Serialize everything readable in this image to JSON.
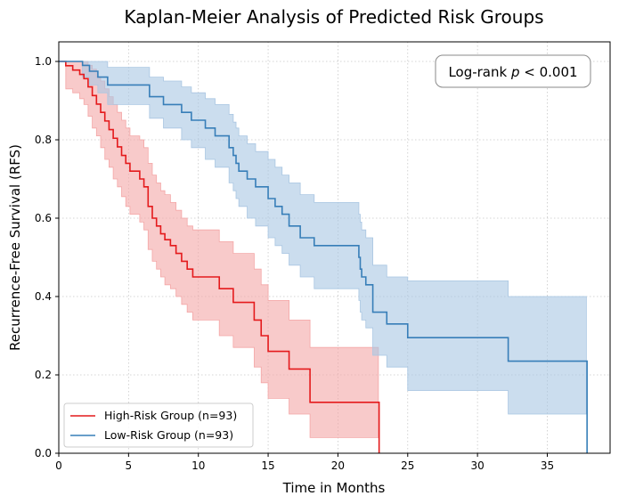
{
  "chart_data": {
    "type": "line",
    "title": "Kaplan-Meier Analysis of Predicted Risk Groups",
    "xlabel": "Time in Months",
    "ylabel": "Recurrence-Free Survival (RFS)",
    "xlim": [
      0,
      39.5
    ],
    "ylim": [
      0,
      1.05
    ],
    "xticks": [
      0,
      5,
      10,
      15,
      20,
      25,
      30,
      35
    ],
    "yticks": [
      0.0,
      0.2,
      0.4,
      0.6,
      0.8,
      1.0
    ],
    "xtick_labels": [
      "0",
      "5",
      "10",
      "15",
      "20",
      "25",
      "30",
      "35"
    ],
    "ytick_labels": [
      "0.0",
      "0.2",
      "0.4",
      "0.6",
      "0.8",
      "1.0"
    ],
    "grid": true,
    "legend_position": "lower-left",
    "annotation": {
      "prefix": "Log-rank ",
      "italic": "p",
      "suffix": " < 0.001"
    },
    "series": [
      {
        "name": "High-Risk Group (n=93)",
        "color": "#e41a1c",
        "band_color": "#f4a6a6",
        "step_times": [
          0,
          0.5,
          1.0,
          1.5,
          1.8,
          2.1,
          2.4,
          2.7,
          3.0,
          3.3,
          3.6,
          3.9,
          4.2,
          4.5,
          4.8,
          5.1,
          5.5,
          5.8,
          6.1,
          6.4,
          6.7,
          7.0,
          7.3,
          7.6,
          8.0,
          8.4,
          8.8,
          9.2,
          9.6,
          10.0,
          11.5,
          12.5,
          14.0,
          14.5,
          15.0,
          16.5,
          18.0,
          22.9,
          22.95
        ],
        "survival": [
          1.0,
          0.989,
          0.978,
          0.967,
          0.956,
          0.935,
          0.913,
          0.891,
          0.87,
          0.848,
          0.826,
          0.804,
          0.782,
          0.76,
          0.74,
          0.72,
          0.72,
          0.7,
          0.68,
          0.63,
          0.6,
          0.58,
          0.56,
          0.545,
          0.53,
          0.51,
          0.49,
          0.47,
          0.45,
          0.45,
          0.42,
          0.385,
          0.34,
          0.3,
          0.26,
          0.215,
          0.13,
          0.13,
          0.0
        ],
        "lower_ci": [
          1.0,
          0.93,
          0.92,
          0.905,
          0.89,
          0.86,
          0.83,
          0.81,
          0.78,
          0.75,
          0.73,
          0.7,
          0.68,
          0.655,
          0.63,
          0.61,
          0.61,
          0.59,
          0.57,
          0.52,
          0.49,
          0.47,
          0.45,
          0.43,
          0.42,
          0.4,
          0.38,
          0.36,
          0.34,
          0.34,
          0.3,
          0.27,
          0.22,
          0.18,
          0.14,
          0.1,
          0.04,
          0.04,
          0.0
        ],
        "upper_ci": [
          1.0,
          1.0,
          1.0,
          1.0,
          1.0,
          0.99,
          0.98,
          0.96,
          0.95,
          0.93,
          0.91,
          0.89,
          0.87,
          0.85,
          0.83,
          0.81,
          0.81,
          0.8,
          0.78,
          0.74,
          0.71,
          0.69,
          0.67,
          0.66,
          0.64,
          0.62,
          0.6,
          0.58,
          0.57,
          0.57,
          0.54,
          0.51,
          0.47,
          0.43,
          0.39,
          0.34,
          0.27,
          0.27,
          0.0
        ]
      },
      {
        "name": "Low-Risk Group (n=93)",
        "color": "#377eb8",
        "band_color": "#a9c6e2",
        "step_times": [
          0,
          1.7,
          2.2,
          2.8,
          3.5,
          5.0,
          6.5,
          7.5,
          8.8,
          9.5,
          10.5,
          11.2,
          12.2,
          12.5,
          12.7,
          12.9,
          13.5,
          14.1,
          15.0,
          15.5,
          16.0,
          16.5,
          17.3,
          18.3,
          21.5,
          21.6,
          21.7,
          22.0,
          22.5,
          23.5,
          25.0,
          32.2,
          37.8,
          37.85
        ],
        "survival": [
          1.0,
          0.99,
          0.975,
          0.96,
          0.94,
          0.94,
          0.91,
          0.89,
          0.87,
          0.85,
          0.83,
          0.81,
          0.78,
          0.76,
          0.74,
          0.72,
          0.7,
          0.68,
          0.65,
          0.63,
          0.61,
          0.58,
          0.55,
          0.53,
          0.5,
          0.47,
          0.45,
          0.43,
          0.36,
          0.33,
          0.295,
          0.235,
          0.235,
          0.0
        ],
        "lower_ci": [
          1.0,
          0.96,
          0.94,
          0.92,
          0.89,
          0.89,
          0.855,
          0.83,
          0.8,
          0.78,
          0.75,
          0.73,
          0.69,
          0.67,
          0.65,
          0.63,
          0.6,
          0.58,
          0.55,
          0.53,
          0.51,
          0.48,
          0.45,
          0.42,
          0.39,
          0.36,
          0.34,
          0.32,
          0.25,
          0.22,
          0.16,
          0.1,
          0.1,
          0.0
        ],
        "upper_ci": [
          1.0,
          1.0,
          1.0,
          1.0,
          0.985,
          0.985,
          0.96,
          0.95,
          0.935,
          0.92,
          0.905,
          0.89,
          0.865,
          0.845,
          0.83,
          0.81,
          0.79,
          0.77,
          0.75,
          0.73,
          0.71,
          0.69,
          0.66,
          0.64,
          0.61,
          0.59,
          0.57,
          0.55,
          0.48,
          0.45,
          0.44,
          0.4,
          0.4,
          0.0
        ]
      }
    ]
  }
}
